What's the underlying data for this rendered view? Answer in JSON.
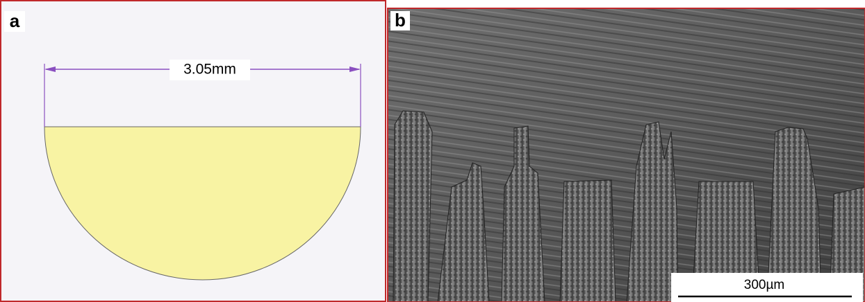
{
  "panels": {
    "a": {
      "label": "a",
      "dimension": "3.05mm"
    },
    "b": {
      "label": "b",
      "scale_bar": "300µm"
    }
  }
}
